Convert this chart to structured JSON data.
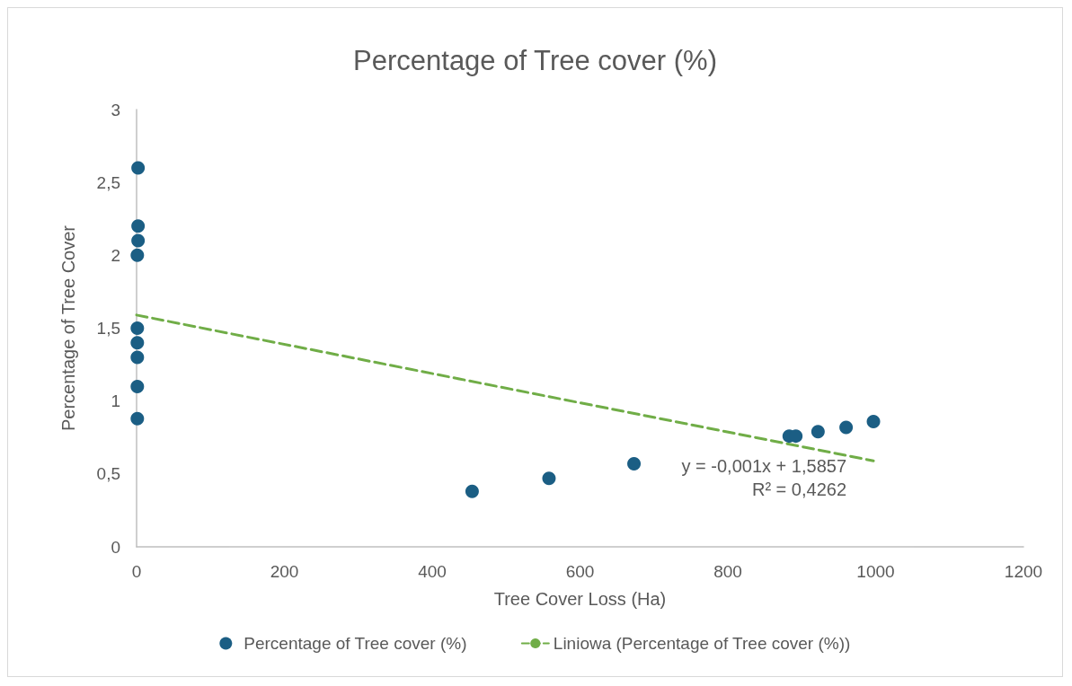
{
  "chart_data": {
    "type": "scatter",
    "title": "Percentage of Tree cover (%)",
    "xlabel": "Tree Cover Loss (Ha)",
    "ylabel": "Percentage of Tree Cover",
    "series": [
      {
        "name": "Percentage of Tree cover (%)",
        "type": "scatter",
        "color": "#1b5e84",
        "marker": "circle",
        "x": [
          2,
          2,
          2,
          1,
          1,
          1,
          1,
          1,
          1,
          454,
          558,
          673,
          883,
          892,
          922,
          960,
          997
        ],
        "values": [
          2.6,
          2.2,
          2.1,
          2.0,
          1.5,
          1.4,
          1.3,
          1.1,
          0.88,
          0.38,
          0.47,
          0.57,
          0.76,
          0.76,
          0.79,
          0.82,
          0.86
        ]
      },
      {
        "name": "Liniowa (Percentage of Tree cover (%))",
        "type": "line",
        "color": "#70ad47",
        "line_style": "dashed",
        "marker": "none",
        "x": [
          0,
          997
        ],
        "values": [
          1.59,
          0.59
        ]
      }
    ],
    "annotations": [
      "y = -0,001x + 1,5857",
      "R² = 0,4262"
    ],
    "xlim": [
      0,
      1200
    ],
    "xticks": [
      0,
      200,
      400,
      600,
      800,
      1000,
      1200
    ],
    "ylim": [
      0,
      3
    ],
    "yticks": [
      0,
      {
        "value": 0.5,
        "label": "0,5"
      },
      1,
      {
        "value": 1.5,
        "label": "1,5"
      },
      2,
      {
        "value": 2.5,
        "label": "2,5"
      },
      3
    ],
    "grid": false,
    "legend": "bottom"
  }
}
